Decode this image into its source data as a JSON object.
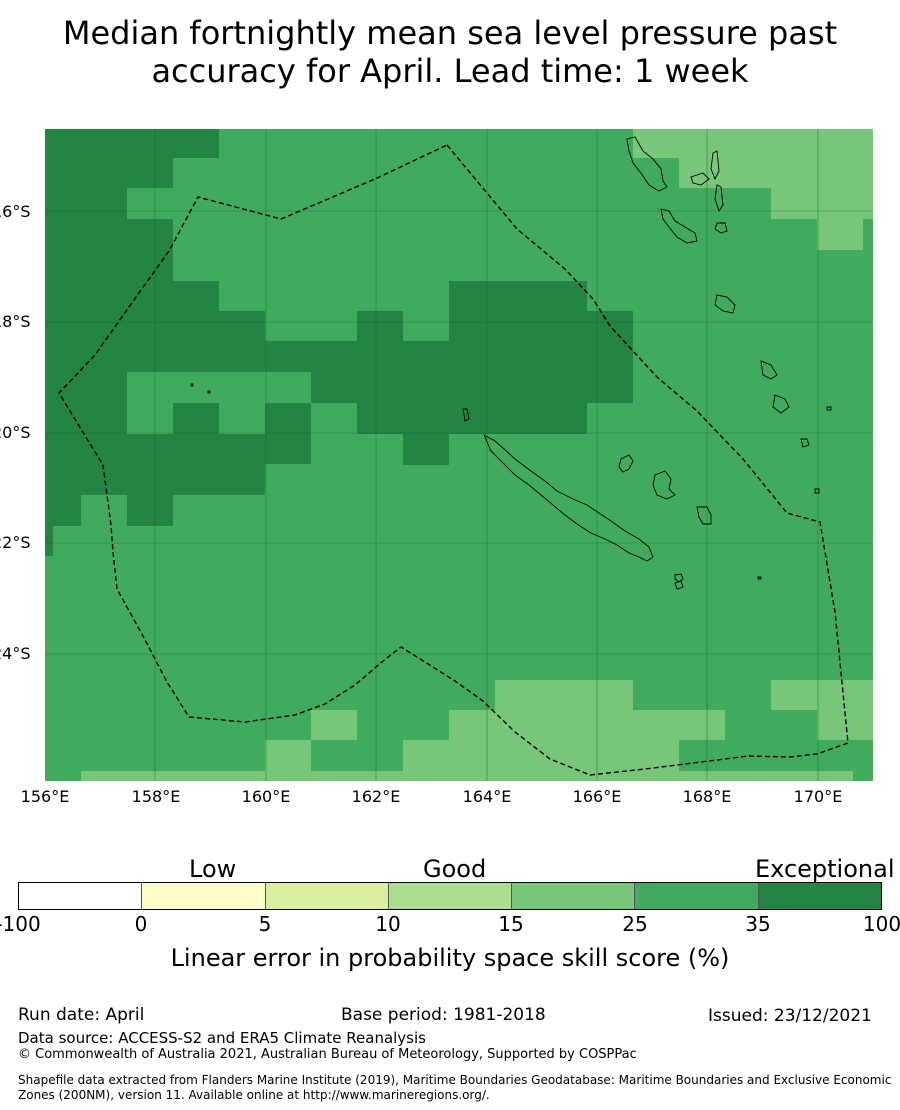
{
  "title": {
    "line1": "Median fortnightly mean sea level pressure past",
    "line2": "accuracy for April. Lead time: 1 week"
  },
  "map": {
    "lat_labels": [
      "16°S",
      "18°S",
      "20°S",
      "22°S",
      "24°S"
    ],
    "lon_labels": [
      "156°E",
      "158°E",
      "160°E",
      "162°E",
      "164°E",
      "166°E",
      "168°E",
      "170°E"
    ],
    "colors": {
      "cat_15_25": "#78c679",
      "cat_25_35": "#41ab5d",
      "cat_35_100": "#238443"
    }
  },
  "legend": {
    "categories": [
      "Low",
      "Good",
      "Exceptional"
    ],
    "ticks": [
      "-100",
      "0",
      "5",
      "10",
      "15",
      "25",
      "35",
      "100"
    ],
    "colors": [
      "#ffffff",
      "#ffffcc",
      "#d9f0a3",
      "#addd8e",
      "#78c679",
      "#41ab5d",
      "#238443"
    ],
    "title": "Linear error in probability space skill score (%)"
  },
  "footer": {
    "run_date": "Run date: April",
    "base_period": "Base period: 1981-2018",
    "issued": "Issued: 23/12/2021",
    "data_source": "Data source: ACCESS-S2 and ERA5 Climate Reanalysis",
    "copyright": "© Commonwealth of Australia 2021, Australian Bureau of Meteorology, Supported by COSPPac",
    "shapefile": "Shapefile data extracted from Flanders Marine Institute (2019), Maritime Boundaries Geodatabase: Maritime Boundaries and Exclusive Economic Zones (200NM), version 11. Available online at http://www.marineregions.org/."
  }
}
